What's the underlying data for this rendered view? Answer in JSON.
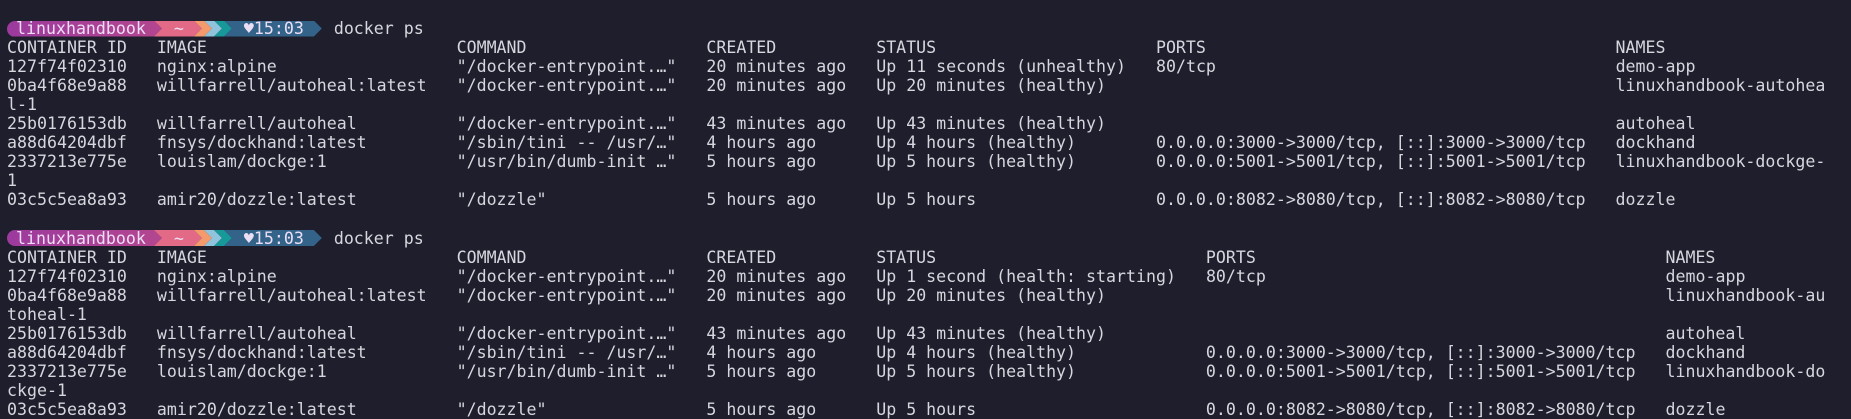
{
  "colors": {
    "background": "#1e1e2c",
    "text": "#d6d6de",
    "prompt_user": "#a63f98",
    "prompt_dir": "#e36a86",
    "chevron_1": "#f49b6e",
    "chevron_2": "#8fc4dc",
    "chevron_3": "#17999a",
    "prompt_time": "#34638a"
  },
  "blocks": [
    {
      "prompt": {
        "user": "linuxhandbook",
        "dir": "~",
        "heart_icon": "♥",
        "time": "15:03",
        "command": "docker ps"
      },
      "headers": [
        "CONTAINER ID",
        "IMAGE",
        "COMMAND",
        "CREATED",
        "STATUS",
        "PORTS",
        "NAMES"
      ],
      "rows": [
        [
          "127f74f02310",
          "nginx:alpine",
          "\"/docker-entrypoint.…\"",
          "20 minutes ago",
          "Up 11 seconds (unhealthy)",
          "80/tcp",
          "demo-app"
        ],
        [
          "0ba4f68e9a88",
          "willfarrell/autoheal:latest",
          "\"/docker-entrypoint.…\"",
          "20 minutes ago",
          "Up 20 minutes (healthy)",
          "",
          "linuxhandbook-autoheal-1"
        ],
        [
          "25b0176153db",
          "willfarrell/autoheal",
          "\"/docker-entrypoint.…\"",
          "43 minutes ago",
          "Up 43 minutes (healthy)",
          "",
          "autoheal"
        ],
        [
          "a88d64204dbf",
          "fnsys/dockhand:latest",
          "\"/sbin/tini -- /usr/…\"",
          "4 hours ago",
          "Up 4 hours (healthy)",
          "0.0.0.0:3000->3000/tcp, [::]:3000->3000/tcp",
          "dockhand"
        ],
        [
          "2337213e775e",
          "louislam/dockge:1",
          "\"/usr/bin/dumb-init …\"",
          "5 hours ago",
          "Up 5 hours (healthy)",
          "0.0.0.0:5001->5001/tcp, [::]:5001->5001/tcp",
          "linuxhandbook-dockge-1"
        ],
        [
          "03c5c5ea8a93",
          "amir20/dozzle:latest",
          "\"/dozzle\"",
          "5 hours ago",
          "Up 5 hours",
          "0.0.0.0:8082->8080/tcp, [::]:8082->8080/tcp",
          "dozzle"
        ]
      ]
    },
    {
      "prompt": {
        "user": "linuxhandbook",
        "dir": "~",
        "heart_icon": "♥",
        "time": "15:03",
        "command": "docker ps"
      },
      "headers": [
        "CONTAINER ID",
        "IMAGE",
        "COMMAND",
        "CREATED",
        "STATUS",
        "PORTS",
        "NAMES"
      ],
      "rows": [
        [
          "127f74f02310",
          "nginx:alpine",
          "\"/docker-entrypoint.…\"",
          "20 minutes ago",
          "Up 1 second (health: starting)",
          "80/tcp",
          "demo-app"
        ],
        [
          "0ba4f68e9a88",
          "willfarrell/autoheal:latest",
          "\"/docker-entrypoint.…\"",
          "20 minutes ago",
          "Up 20 minutes (healthy)",
          "",
          "linuxhandbook-autoheal-1"
        ],
        [
          "25b0176153db",
          "willfarrell/autoheal",
          "\"/docker-entrypoint.…\"",
          "43 minutes ago",
          "Up 43 minutes (healthy)",
          "",
          "autoheal"
        ],
        [
          "a88d64204dbf",
          "fnsys/dockhand:latest",
          "\"/sbin/tini -- /usr/…\"",
          "4 hours ago",
          "Up 4 hours (healthy)",
          "0.0.0.0:3000->3000/tcp, [::]:3000->3000/tcp",
          "dockhand"
        ],
        [
          "2337213e775e",
          "louislam/dockge:1",
          "\"/usr/bin/dumb-init …\"",
          "5 hours ago",
          "Up 5 hours (healthy)",
          "0.0.0.0:5001->5001/tcp, [::]:5001->5001/tcp",
          "linuxhandbook-dockge-1"
        ],
        [
          "03c5c5ea8a93",
          "amir20/dozzle:latest",
          "\"/dozzle\"",
          "5 hours ago",
          "Up 5 hours",
          "0.0.0.0:8082->8080/tcp, [::]:8082->8080/tcp",
          "dozzle"
        ]
      ]
    }
  ]
}
